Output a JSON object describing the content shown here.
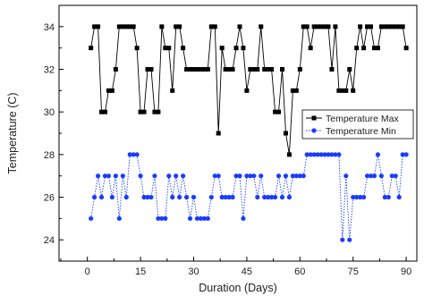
{
  "chart_data": {
    "type": "line",
    "xlabel": "Duration (Days)",
    "ylabel": "Temperature (C)",
    "xlim": [
      -8,
      93
    ],
    "ylim": [
      23,
      35
    ],
    "xticks": [
      0,
      15,
      30,
      45,
      60,
      75,
      90
    ],
    "yticks": [
      24,
      26,
      28,
      30,
      32,
      34
    ],
    "grid": false,
    "legend_position": "right",
    "x": [
      1,
      2,
      3,
      4,
      5,
      6,
      7,
      8,
      9,
      10,
      11,
      12,
      13,
      14,
      15,
      16,
      17,
      18,
      19,
      20,
      21,
      22,
      23,
      24,
      25,
      26,
      27,
      28,
      29,
      30,
      31,
      32,
      33,
      34,
      35,
      36,
      37,
      38,
      39,
      40,
      41,
      42,
      43,
      44,
      45,
      46,
      47,
      48,
      49,
      50,
      51,
      52,
      53,
      54,
      55,
      56,
      57,
      58,
      59,
      60,
      61,
      62,
      63,
      64,
      65,
      66,
      67,
      68,
      69,
      70,
      71,
      72,
      73,
      74,
      75,
      76,
      77,
      78,
      79,
      80,
      81,
      82,
      83,
      84,
      85,
      86,
      87,
      88,
      89,
      90
    ],
    "series": [
      {
        "name": "Temperature Max",
        "color": "#000000",
        "marker": "square",
        "line_style": "solid",
        "values": [
          33,
          34,
          34,
          30,
          30,
          31,
          31,
          32,
          34,
          34,
          34,
          34,
          34,
          33,
          30,
          30,
          32,
          32,
          30,
          30,
          34,
          33,
          33,
          31,
          34,
          34,
          33,
          32,
          32,
          32,
          32,
          32,
          32,
          32,
          34,
          34,
          29,
          33,
          32,
          32,
          32,
          33,
          34,
          33,
          31,
          32,
          32,
          32,
          34,
          32,
          32,
          32,
          30,
          30,
          32,
          29,
          28,
          31,
          31,
          32,
          34,
          34,
          33,
          34,
          34,
          34,
          34,
          34,
          32,
          34,
          31,
          31,
          31,
          32,
          31,
          33,
          34,
          33,
          34,
          34,
          33,
          33,
          34,
          34,
          34,
          34,
          34,
          34,
          34,
          33
        ]
      },
      {
        "name": "Temperature Min",
        "color": "#1a3cff",
        "marker": "circle",
        "line_style": "dotted",
        "values": [
          25,
          26,
          27,
          26,
          27,
          27,
          26,
          27,
          25,
          27,
          26,
          28,
          28,
          28,
          27,
          26,
          26,
          26,
          27,
          25,
          25,
          25,
          27,
          26,
          27,
          26,
          27,
          26,
          25,
          26,
          25,
          25,
          25,
          25,
          26,
          27,
          27,
          26,
          26,
          26,
          26,
          27,
          27,
          25,
          27,
          27,
          27,
          26,
          27,
          26,
          26,
          26,
          26,
          27,
          26,
          27,
          26,
          27,
          27,
          27,
          27,
          28,
          28,
          28,
          28,
          28,
          28,
          28,
          28,
          28,
          28,
          24,
          27,
          24,
          26,
          26,
          26,
          26,
          27,
          27,
          27,
          28,
          27,
          26,
          26,
          27,
          27,
          26,
          28,
          28
        ]
      }
    ]
  }
}
